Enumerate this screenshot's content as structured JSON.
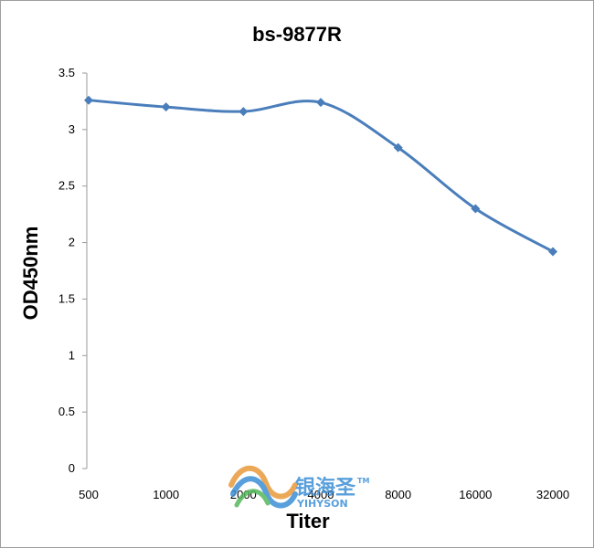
{
  "chart_data": {
    "type": "line",
    "title": "bs-9877R",
    "xlabel": "Titer",
    "ylabel": "OD450nm",
    "categories": [
      "500",
      "1000",
      "2000",
      "4000",
      "8000",
      "16000",
      "32000"
    ],
    "series": [
      {
        "values": [
          3.26,
          3.2,
          3.16,
          3.24,
          2.84,
          2.3,
          1.92
        ]
      }
    ],
    "ylim": [
      0,
      3.5
    ],
    "yticks": [
      0,
      0.5,
      1,
      1.5,
      2,
      2.5,
      3,
      3.5
    ],
    "ytick_labels": [
      "0",
      "0.5",
      "1",
      "1.5",
      "2",
      "2.5",
      "3",
      "3.5"
    ],
    "grid": false,
    "legend": "none",
    "line_color": "#4a7ebb",
    "marker": "diamond"
  },
  "watermark": {
    "text_cn": "银海圣",
    "trademark": "TM",
    "text_en": "YIHYSON",
    "color": "#3b8fd6"
  }
}
